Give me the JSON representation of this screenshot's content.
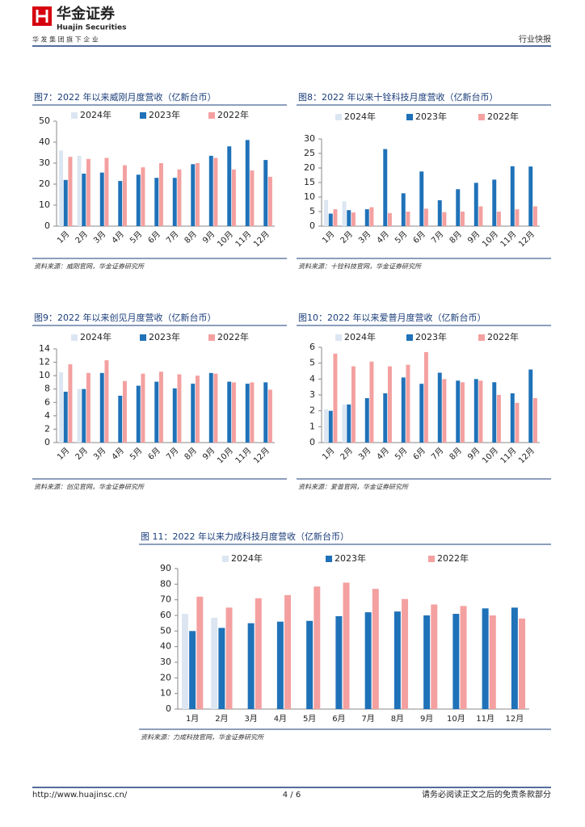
{
  "header": {
    "logo_cn": "华金证券",
    "logo_en": "Huajin Securities",
    "slogan": "华 发 集 团 旗 下 企 业",
    "section": "行业快报"
  },
  "footer": {
    "url": "http://www.huajinsc.cn/",
    "page": "4 / 6",
    "disclaimer": "请务必阅读正文之后的免责条款部分"
  },
  "chart_data": [
    {
      "type": "bar",
      "title": "图7：2022 年以来威刚月度营收（亿新台币）",
      "source": "资料来源：威刚官网，华金证券研究所",
      "categories": [
        "1月",
        "2月",
        "3月",
        "4月",
        "5月",
        "6月",
        "7月",
        "8月",
        "9月",
        "10月",
        "11月",
        "12月"
      ],
      "ylim": [
        0,
        50
      ],
      "yticks": [
        0,
        10,
        20,
        30,
        40,
        50
      ],
      "series": [
        {
          "name": "2024年",
          "color": "#dce6f2",
          "values": [
            36,
            33.5,
            null,
            null,
            null,
            null,
            null,
            null,
            null,
            null,
            null,
            null
          ]
        },
        {
          "name": "2023年",
          "color": "#1f72b8",
          "values": [
            22,
            25,
            25.5,
            21.5,
            24.5,
            23,
            23,
            29.5,
            33.5,
            38,
            41,
            31.5
          ]
        },
        {
          "name": "2022年",
          "color": "#f4a0a0",
          "values": [
            33,
            32,
            32.5,
            29,
            28,
            30,
            27,
            30,
            32.5,
            27,
            26.5,
            23.5
          ]
        }
      ]
    },
    {
      "type": "bar",
      "title": "图8：2022 年以来十铨科技月度营收（亿新台币）",
      "source": "资料来源：十铨科技官网，华金证券研究所",
      "categories": [
        "1月",
        "2月",
        "3月",
        "4月",
        "5月",
        "6月",
        "7月",
        "8月",
        "9月",
        "10月",
        "11月",
        "12月"
      ],
      "ylim": [
        0,
        30
      ],
      "yticks": [
        0,
        5,
        10,
        15,
        20,
        25,
        30
      ],
      "series": [
        {
          "name": "2024年",
          "color": "#dce6f2",
          "values": [
            9,
            8.5,
            null,
            null,
            null,
            null,
            null,
            null,
            null,
            null,
            null,
            null
          ]
        },
        {
          "name": "2023年",
          "color": "#1f72b8",
          "values": [
            4.3,
            5.5,
            5.8,
            26.5,
            11.3,
            18.8,
            8.9,
            12.7,
            14.9,
            16,
            20.6,
            20.5
          ]
        },
        {
          "name": "2022年",
          "color": "#f4a0a0",
          "values": [
            5.8,
            4.7,
            6.5,
            4.5,
            5,
            6,
            4.8,
            5,
            6.8,
            5,
            5.8,
            6.8
          ]
        }
      ]
    },
    {
      "type": "bar",
      "title": "图9：2022 年以来创见月度营收（亿新台币）",
      "source": "资料来源：创见官网，华金证券研究所",
      "categories": [
        "1月",
        "2月",
        "3月",
        "4月",
        "5月",
        "6月",
        "7月",
        "8月",
        "9月",
        "10月",
        "11月",
        "12月"
      ],
      "ylim": [
        0,
        14
      ],
      "yticks": [
        0,
        2,
        4,
        6,
        8,
        10,
        12,
        14
      ],
      "series": [
        {
          "name": "2024年",
          "color": "#dce6f2",
          "values": [
            10.5,
            8,
            null,
            null,
            null,
            null,
            null,
            null,
            null,
            null,
            null,
            null
          ]
        },
        {
          "name": "2023年",
          "color": "#1f72b8",
          "values": [
            7.6,
            8,
            10.4,
            7,
            8.5,
            9.1,
            8.1,
            8.8,
            10.4,
            9.1,
            8.8,
            9
          ]
        },
        {
          "name": "2022年",
          "color": "#f4a0a0",
          "values": [
            11.7,
            10.4,
            12.3,
            9.2,
            10.3,
            10.6,
            10.2,
            10,
            10.3,
            9,
            9,
            7.9
          ]
        }
      ]
    },
    {
      "type": "bar",
      "title": "图10：2022 年以来爱普月度营收（亿新台币）",
      "source": "资料来源：爱普官网，华金证券研究所",
      "categories": [
        "1月",
        "2月",
        "3月",
        "4月",
        "5月",
        "6月",
        "7月",
        "8月",
        "9月",
        "10月",
        "11月",
        "12月"
      ],
      "ylim": [
        0,
        6
      ],
      "yticks": [
        0,
        1,
        2,
        3,
        4,
        5,
        6
      ],
      "series": [
        {
          "name": "2024年",
          "color": "#dce6f2",
          "values": [
            2.1,
            2.4,
            null,
            null,
            null,
            null,
            null,
            null,
            null,
            null,
            null,
            null
          ]
        },
        {
          "name": "2023年",
          "color": "#1f72b8",
          "values": [
            2,
            2.4,
            2.8,
            3.1,
            4.1,
            3.7,
            4.4,
            3.9,
            4,
            3.8,
            3.1,
            4.6
          ]
        },
        {
          "name": "2022年",
          "color": "#f4a0a0",
          "values": [
            5.6,
            4.8,
            5.1,
            4.8,
            4.9,
            5.7,
            4,
            3.8,
            3.9,
            3,
            2.5,
            2.8
          ]
        }
      ]
    },
    {
      "type": "bar",
      "title": "图 11：2022 年以来力成科技月度营收（亿新台币）",
      "source": "资料来源：力成科技官网，华金证券研究所",
      "categories": [
        "1月",
        "2月",
        "3月",
        "4月",
        "5月",
        "6月",
        "7月",
        "8月",
        "9月",
        "10月",
        "11月",
        "12月"
      ],
      "ylim": [
        0,
        90
      ],
      "yticks": [
        0,
        10,
        20,
        30,
        40,
        50,
        60,
        70,
        80,
        90
      ],
      "series": [
        {
          "name": "2024年",
          "color": "#dce6f2",
          "values": [
            61,
            58.5,
            null,
            null,
            null,
            null,
            null,
            null,
            null,
            null,
            null,
            null
          ]
        },
        {
          "name": "2023年",
          "color": "#1f72b8",
          "values": [
            50,
            52,
            55,
            56,
            56.5,
            59.5,
            62,
            62.5,
            60,
            61,
            64.5,
            65
          ]
        },
        {
          "name": "2022年",
          "color": "#f4a0a0",
          "values": [
            72,
            65,
            71,
            73,
            78.5,
            81,
            77,
            70.5,
            67,
            66,
            60,
            58
          ]
        }
      ]
    }
  ]
}
